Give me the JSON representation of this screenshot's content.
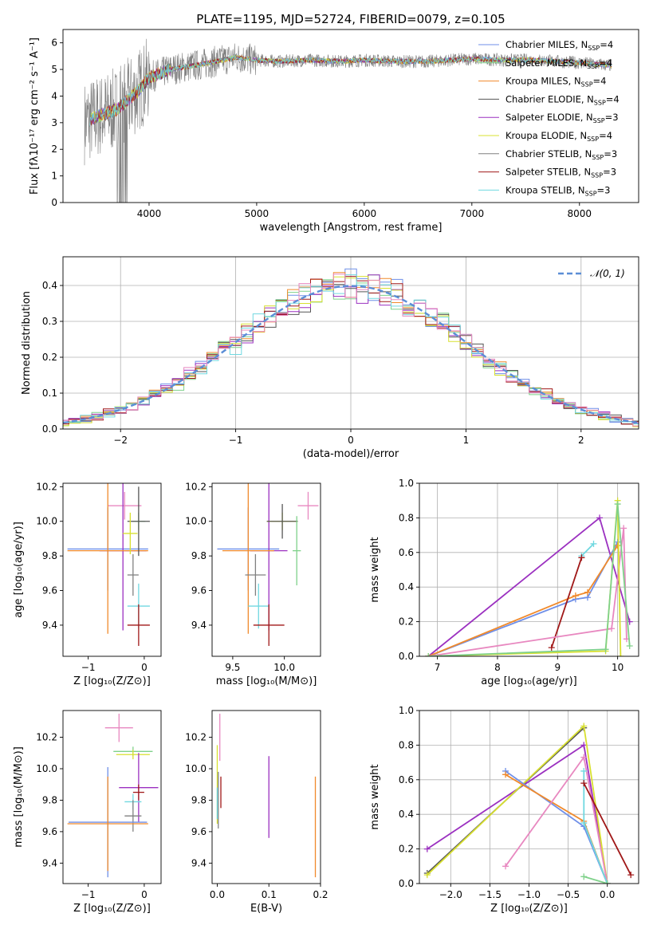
{
  "figure_title": "PLATE=1195, MJD=52724, FIBERID=0079, z=0.105",
  "colors": {
    "Chabrier MILES": "#6f8fe8",
    "Salpeter MILES": "#7fd18a",
    "Kroupa MILES": "#f08a2c",
    "Chabrier ELODIE": "#555555",
    "Salpeter ELODIE": "#9b30c0",
    "Kroupa ELODIE": "#d8e030",
    "Chabrier STELIB": "#808080",
    "Salpeter STELIB": "#a01818",
    "Kroupa STELIB": "#70d8e0",
    "Extra": "#e888c0",
    "Gauss": "#5b8ed6"
  },
  "chart_data": [
    {
      "type": "line",
      "id": "spectrum",
      "xlabel": "wavelength [Angstrom, rest frame]",
      "ylabel": "Flux [fλ10⁻¹⁷ erg cm⁻² s⁻¹ A⁻¹]",
      "xlim": [
        3200,
        8550
      ],
      "ylim": [
        0,
        6.5
      ],
      "xticks": [
        4000,
        5000,
        6000,
        7000,
        8000
      ],
      "yticks": [
        0,
        1,
        2,
        3,
        4,
        5,
        6
      ],
      "grid": false,
      "legend_position": "top-right",
      "legend": [
        {
          "name": "Chabrier MILES",
          "label": "Chabrier MILES, N",
          "sub": "SSP",
          "eq": "=4"
        },
        {
          "name": "Salpeter MILES",
          "label": "Salpeter MILES, N",
          "sub": "SSP",
          "eq": "=4"
        },
        {
          "name": "Kroupa MILES",
          "label": "Kroupa MILES, N",
          "sub": "SSP",
          "eq": "=4"
        },
        {
          "name": "Chabrier ELODIE",
          "label": "Chabrier ELODIE, N",
          "sub": "SSP",
          "eq": "=4"
        },
        {
          "name": "Salpeter ELODIE",
          "label": "Salpeter ELODIE, N",
          "sub": "SSP",
          "eq": "=3"
        },
        {
          "name": "Kroupa ELODIE",
          "label": "Kroupa ELODIE, N",
          "sub": "SSP",
          "eq": "=4"
        },
        {
          "name": "Chabrier STELIB",
          "label": "Chabrier STELIB, N",
          "sub": "SSP",
          "eq": "=3"
        },
        {
          "name": "Salpeter STELIB",
          "label": "Salpeter STELIB, N",
          "sub": "SSP",
          "eq": "=3"
        },
        {
          "name": "Kroupa STELIB",
          "label": "Kroupa STELIB, N",
          "sub": "SSP",
          "eq": "=3"
        }
      ],
      "continuum": {
        "x": [
          3400,
          3500,
          3700,
          3900,
          4000,
          4200,
          4500,
          4800,
          5000,
          5200,
          5500,
          5800,
          6000,
          6300,
          6600,
          7000,
          7300,
          7600,
          8000,
          8300
        ],
        "y": [
          3.0,
          3.2,
          3.5,
          4.2,
          4.7,
          5.0,
          5.2,
          5.45,
          5.35,
          5.3,
          5.35,
          5.3,
          5.35,
          5.3,
          5.3,
          5.4,
          5.35,
          5.35,
          5.25,
          5.15
        ]
      }
    },
    {
      "type": "bar",
      "id": "residuals",
      "xlabel": "(data-model)/error",
      "ylabel": "Normed distribution",
      "xlim": [
        -2.5,
        2.5
      ],
      "ylim": [
        0,
        0.48
      ],
      "xticks": [
        -2,
        -1,
        0,
        1,
        2
      ],
      "yticks": [
        0.0,
        0.1,
        0.2,
        0.3,
        0.4
      ],
      "grid": true,
      "legend_position": "top-right",
      "legend": [
        {
          "name": "N(0,1)",
          "label": "𝒩(0, 1)"
        }
      ],
      "bins": {
        "start": -2.55,
        "width": 0.1,
        "count": 51
      }
    },
    {
      "type": "scatter",
      "id": "z_age",
      "xlabel": "Z [log₁₀(Z/Z⊙)]",
      "ylabel": "age  [log₁₀(age/yr)]",
      "xlim": [
        -1.45,
        0.3
      ],
      "ylim": [
        9.22,
        10.22
      ],
      "xticks": [
        -1,
        0
      ],
      "yticks": [
        9.4,
        9.6,
        9.8,
        10.0,
        10.2
      ],
      "points": [
        {
          "s": "Extra",
          "x": -0.35,
          "y": 10.09,
          "xe": 0.3,
          "ye": 0.08
        },
        {
          "s": "Chabrier MILES",
          "x": -0.65,
          "y": 9.84,
          "xe": 0.72,
          "ye": 0.24
        },
        {
          "s": "Salpeter ELODIE",
          "x": -0.38,
          "y": 9.83,
          "xe": 0.42,
          "ye": 0.46
        },
        {
          "s": "Kroupa MILES",
          "x": -0.65,
          "y": 9.83,
          "xe": 0.72,
          "ye": 0.48
        },
        {
          "s": "Salpeter MILES",
          "x": -0.1,
          "y": 10.0,
          "xe": 0.12,
          "ye": 0.05
        },
        {
          "s": "Chabrier ELODIE",
          "x": -0.1,
          "y": 10.0,
          "xe": 0.2,
          "ye": 0.2
        },
        {
          "s": "Kroupa ELODIE",
          "x": -0.25,
          "y": 9.93,
          "xe": 0.13,
          "ye": 0.12
        },
        {
          "s": "Chabrier STELIB",
          "x": -0.2,
          "y": 9.69,
          "xe": 0.1,
          "ye": 0.12
        },
        {
          "s": "Kroupa STELIB",
          "x": -0.1,
          "y": 9.51,
          "xe": 0.2,
          "ye": 0.13
        },
        {
          "s": "Salpeter STELIB",
          "x": -0.1,
          "y": 9.4,
          "xe": 0.2,
          "ye": 0.12
        }
      ]
    },
    {
      "type": "scatter",
      "id": "mass_age",
      "xlabel": "mass [log₁₀(M/M⊙)]",
      "ylabel": "",
      "xlim": [
        9.3,
        10.35
      ],
      "ylim": [
        9.22,
        10.22
      ],
      "xticks": [
        9.5,
        10.0
      ],
      "yticks": [
        9.4,
        9.6,
        9.8,
        10.0,
        10.2
      ],
      "points": [
        {
          "s": "Extra",
          "x": 10.23,
          "y": 10.09,
          "xe": 0.1,
          "ye": 0.08
        },
        {
          "s": "Chabrier MILES",
          "x": 9.65,
          "y": 9.84,
          "xe": 0.3,
          "ye": 0.24
        },
        {
          "s": "Salpeter ELODIE",
          "x": 9.85,
          "y": 9.83,
          "xe": 0.18,
          "ye": 0.46
        },
        {
          "s": "Kroupa MILES",
          "x": 9.65,
          "y": 9.83,
          "xe": 0.25,
          "ye": 0.48
        },
        {
          "s": "Kroupa ELODIE",
          "x": 9.98,
          "y": 10.0,
          "xe": 0.15,
          "ye": 0.05
        },
        {
          "s": "Chabrier ELODIE",
          "x": 9.98,
          "y": 10.0,
          "xe": 0.15,
          "ye": 0.1
        },
        {
          "s": "Chabrier STELIB",
          "x": 9.72,
          "y": 9.69,
          "xe": 0.1,
          "ye": 0.12
        },
        {
          "s": "Kroupa STELIB",
          "x": 9.75,
          "y": 9.51,
          "xe": 0.1,
          "ye": 0.13
        },
        {
          "s": "Salpeter STELIB",
          "x": 9.85,
          "y": 9.4,
          "xe": 0.15,
          "ye": 0.12
        },
        {
          "s": "Salpeter MILES",
          "x": 10.12,
          "y": 9.83,
          "xe": 0.04,
          "ye": 0.2
        }
      ]
    },
    {
      "type": "line",
      "id": "age_weight",
      "xlabel": "age  [log₁₀(age/yr)]",
      "ylabel": "mass weight",
      "xlim": [
        6.7,
        10.35
      ],
      "ylim": [
        0,
        1.0
      ],
      "xticks": [
        7,
        8,
        9,
        10
      ],
      "yticks": [
        0.0,
        0.2,
        0.4,
        0.6,
        0.8,
        1.0
      ],
      "grid": true,
      "series": [
        {
          "s": "Salpeter ELODIE",
          "x": [
            6.85,
            9.7,
            10.2
          ],
          "y": [
            0.0,
            0.8,
            0.2
          ]
        },
        {
          "s": "Chabrier MILES",
          "x": [
            6.85,
            9.3,
            9.5,
            10.0
          ],
          "y": [
            0.0,
            0.33,
            0.34,
            0.66
          ]
        },
        {
          "s": "Kroupa MILES",
          "x": [
            6.85,
            9.3,
            9.5,
            10.0
          ],
          "y": [
            0.0,
            0.35,
            0.37,
            0.64
          ]
        },
        {
          "s": "Kroupa STELIB",
          "x": [
            9.4,
            9.6
          ],
          "y": [
            0.58,
            0.65
          ]
        },
        {
          "s": "Salpeter STELIB",
          "x": [
            8.9,
            9.4
          ],
          "y": [
            0.05,
            0.57
          ]
        },
        {
          "s": "Extra",
          "x": [
            6.85,
            9.9,
            10.1,
            10.15
          ],
          "y": [
            0.0,
            0.16,
            0.74,
            0.1
          ]
        },
        {
          "s": "Kroupa ELODIE",
          "x": [
            6.85,
            9.8,
            10.0,
            10.05
          ],
          "y": [
            0.0,
            0.03,
            0.9,
            0.0
          ]
        },
        {
          "s": "Salpeter MILES",
          "x": [
            6.85,
            9.8,
            10.0,
            10.2
          ],
          "y": [
            0.0,
            0.04,
            0.88,
            0.06
          ]
        }
      ]
    },
    {
      "type": "scatter",
      "id": "z_mass",
      "xlabel": "Z [log₁₀(Z/Z⊙)]",
      "ylabel": "mass [log₁₀(M/M⊙)]",
      "xlim": [
        -1.45,
        0.3
      ],
      "ylim": [
        9.27,
        10.37
      ],
      "xticks": [
        -1,
        0
      ],
      "yticks": [
        9.4,
        9.6,
        9.8,
        10.0,
        10.2
      ],
      "points": [
        {
          "s": "Extra",
          "x": -0.45,
          "y": 10.26,
          "xe": 0.25,
          "ye": 0.09
        },
        {
          "s": "Salpeter MILES",
          "x": -0.2,
          "y": 10.11,
          "xe": 0.35,
          "ye": 0.03
        },
        {
          "s": "Kroupa ELODIE",
          "x": -0.2,
          "y": 10.09,
          "xe": 0.3,
          "ye": 0.03
        },
        {
          "s": "Salpeter ELODIE",
          "x": -0.1,
          "y": 9.88,
          "xe": 0.35,
          "ye": 0.22
        },
        {
          "s": "Salpeter STELIB",
          "x": -0.1,
          "y": 9.85,
          "xe": 0.1,
          "ye": 0.05
        },
        {
          "s": "Kroupa STELIB",
          "x": -0.2,
          "y": 9.79,
          "xe": 0.15,
          "ye": 0.05
        },
        {
          "s": "Chabrier STELIB",
          "x": -0.2,
          "y": 9.7,
          "xe": 0.15,
          "ye": 0.1
        },
        {
          "s": "Chabrier MILES",
          "x": -0.65,
          "y": 9.66,
          "xe": 0.7,
          "ye": 0.35
        },
        {
          "s": "Kroupa MILES",
          "x": -0.65,
          "y": 9.65,
          "xe": 0.72,
          "ye": 0.3
        }
      ]
    },
    {
      "type": "scatter",
      "id": "ebv_mass",
      "xlabel": "E(B-V)",
      "ylabel": "",
      "xlim": [
        -0.01,
        0.2
      ],
      "ylim": [
        9.27,
        10.37
      ],
      "xticks": [
        0.0,
        0.1,
        0.2
      ],
      "yticks": [
        9.4,
        9.6,
        9.8,
        10.0,
        10.2
      ],
      "points": [
        {
          "s": "Extra",
          "x": 0.005,
          "y": 10.2,
          "xe": 0,
          "ye": 0.15
        },
        {
          "s": "Kroupa ELODIE",
          "x": 0.0,
          "y": 9.9,
          "xe": 0,
          "ye": 0.25
        },
        {
          "s": "Chabrier STELIB",
          "x": 0.002,
          "y": 9.8,
          "xe": 0,
          "ye": 0.18
        },
        {
          "s": "Kroupa STELIB",
          "x": 0.0,
          "y": 9.78,
          "xe": 0,
          "ye": 0.1
        },
        {
          "s": "Salpeter STELIB",
          "x": 0.007,
          "y": 9.85,
          "xe": 0,
          "ye": 0.1
        },
        {
          "s": "Salpeter ELODIE",
          "x": 0.1,
          "y": 9.82,
          "xe": 0,
          "ye": 0.26
        },
        {
          "s": "Kroupa MILES",
          "x": 0.19,
          "y": 9.63,
          "xe": 0,
          "ye": 0.32
        }
      ]
    },
    {
      "type": "line",
      "id": "z_weight",
      "xlabel": "Z [log₁₀(Z/Z⊙)]",
      "ylabel": "mass weight",
      "xlim": [
        -2.4,
        0.4
      ],
      "ylim": [
        0,
        1.0
      ],
      "xticks": [
        -2.0,
        -1.5,
        -1.0,
        -0.5,
        0.0
      ],
      "yticks": [
        0.0,
        0.2,
        0.4,
        0.6,
        0.8,
        1.0
      ],
      "grid": true,
      "series": [
        {
          "s": "Salpeter ELODIE",
          "x": [
            -2.3,
            -0.3,
            0.0
          ],
          "y": [
            0.2,
            0.8,
            0.0
          ]
        },
        {
          "s": "Chabrier ELODIE",
          "x": [
            -2.3,
            -0.3
          ],
          "y": [
            0.06,
            0.9
          ]
        },
        {
          "s": "Kroupa ELODIE",
          "x": [
            -2.3,
            -0.3,
            0.0
          ],
          "y": [
            0.05,
            0.91,
            0.0
          ]
        },
        {
          "s": "Chabrier MILES",
          "x": [
            -1.3,
            -0.3,
            0.0
          ],
          "y": [
            0.65,
            0.33,
            0.0
          ]
        },
        {
          "s": "Kroupa MILES",
          "x": [
            -1.3,
            -0.3,
            0.0
          ],
          "y": [
            0.63,
            0.36,
            0.0
          ]
        },
        {
          "s": "Extra",
          "x": [
            -1.3,
            -0.3,
            0.0
          ],
          "y": [
            0.1,
            0.73,
            0.0
          ]
        },
        {
          "s": "Kroupa STELIB",
          "x": [
            -0.3,
            -0.3,
            0.0
          ],
          "y": [
            0.65,
            0.35,
            0.0
          ]
        },
        {
          "s": "Salpeter STELIB",
          "x": [
            -0.3,
            0.3
          ],
          "y": [
            0.58,
            0.05
          ]
        },
        {
          "s": "Salpeter MILES",
          "x": [
            -0.3,
            0.0
          ],
          "y": [
            0.04,
            0.0
          ]
        }
      ]
    }
  ]
}
